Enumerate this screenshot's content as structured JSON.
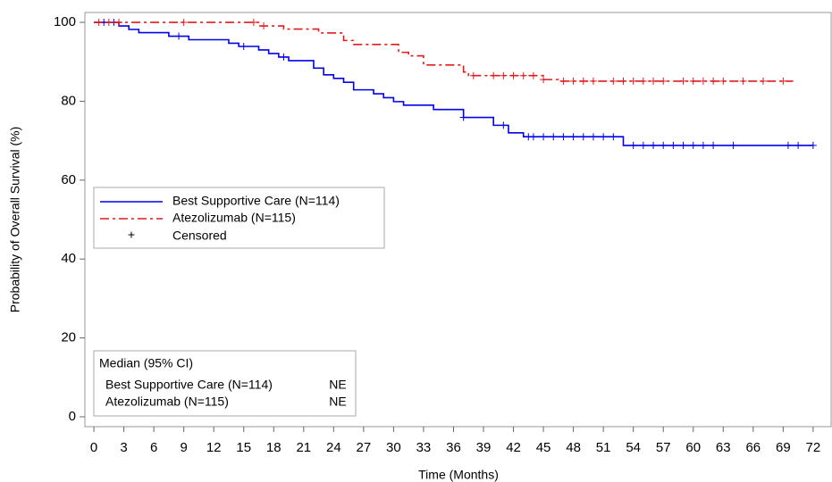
{
  "chart_data": {
    "type": "step",
    "xlabel": "Time (Months)",
    "ylabel": "Probability of Overall Survival (%)",
    "xlim": [
      -0.9,
      73.8
    ],
    "ylim": [
      -2.5,
      102.5
    ],
    "xticks": [
      0,
      3,
      6,
      9,
      12,
      15,
      18,
      21,
      24,
      27,
      30,
      33,
      36,
      39,
      42,
      45,
      48,
      51,
      54,
      57,
      60,
      63,
      66,
      69,
      72
    ],
    "yticks": [
      0,
      20,
      40,
      60,
      80,
      100
    ],
    "series": [
      {
        "name": "Best Supportive Care (N=114)",
        "color": "#0000ee",
        "dash": "solid",
        "x": [
          0,
          2.5,
          3.5,
          4.5,
          7.5,
          9.5,
          13.5,
          14.5,
          16.5,
          17.5,
          18.5,
          19.5,
          22,
          23,
          24,
          25,
          26,
          28,
          29,
          30,
          31,
          34,
          37,
          40,
          41.5,
          43,
          53,
          72
        ],
        "values": [
          100,
          99.1,
          98.2,
          97.4,
          96.5,
          95.6,
          94.7,
          93.9,
          93.0,
          92.1,
          91.2,
          90.3,
          88.4,
          86.7,
          85.8,
          84.8,
          82.9,
          81.9,
          80.9,
          79.9,
          79.0,
          77.9,
          75.9,
          73.9,
          72.0,
          71.0,
          68.8,
          68.8
        ],
        "censored": {
          "x": [
            1,
            2,
            8.5,
            15,
            19,
            37,
            41,
            43.5,
            44,
            45,
            46,
            47,
            48,
            49,
            50,
            51,
            52,
            54,
            55,
            56,
            57,
            58,
            59,
            60,
            61,
            62,
            64,
            69.5,
            70.5,
            72
          ],
          "values": [
            100,
            100,
            96.5,
            93.9,
            91.2,
            75.9,
            73.9,
            71.0,
            71.0,
            71.0,
            71.0,
            71.0,
            71.0,
            71.0,
            71.0,
            71.0,
            71.0,
            68.8,
            68.8,
            68.8,
            68.8,
            68.8,
            68.8,
            68.8,
            68.8,
            68.8,
            68.8,
            68.8,
            68.8,
            68.8
          ]
        }
      },
      {
        "name": "Atezolizumab (N=115)",
        "color": "#e31a1c",
        "dash": "dashdot",
        "x": [
          0,
          16.5,
          19,
          22.5,
          25,
          26,
          30.5,
          31.5,
          33,
          37,
          37.5,
          45,
          46.5,
          70
        ],
        "values": [
          100,
          99.1,
          98.3,
          97.3,
          95.4,
          94.4,
          92.4,
          91.5,
          89.2,
          87.4,
          86.5,
          85.5,
          85.1,
          85.1
        ],
        "censored": {
          "x": [
            0.5,
            1.5,
            2.5,
            9,
            16,
            17,
            38,
            40,
            41,
            42,
            43,
            44,
            45,
            47,
            48,
            49,
            50,
            52,
            53,
            54,
            55,
            56,
            57,
            59,
            60,
            61,
            62,
            63,
            65,
            67,
            69
          ],
          "values": [
            100,
            100,
            100,
            100,
            100,
            99.1,
            86.5,
            86.5,
            86.5,
            86.5,
            86.5,
            86.5,
            85.5,
            85.1,
            85.1,
            85.1,
            85.1,
            85.1,
            85.1,
            85.1,
            85.1,
            85.1,
            85.1,
            85.1,
            85.1,
            85.1,
            85.1,
            85.1,
            85.1,
            85.1,
            85.1
          ]
        }
      }
    ],
    "censor_symbol": "+",
    "censor_label": "Censored",
    "median_table": {
      "title": "Median (95% CI)",
      "rows": [
        [
          "Best Supportive Care (N=114)",
          "NE"
        ],
        [
          "Atezolizumab (N=115)",
          "NE"
        ]
      ]
    }
  }
}
